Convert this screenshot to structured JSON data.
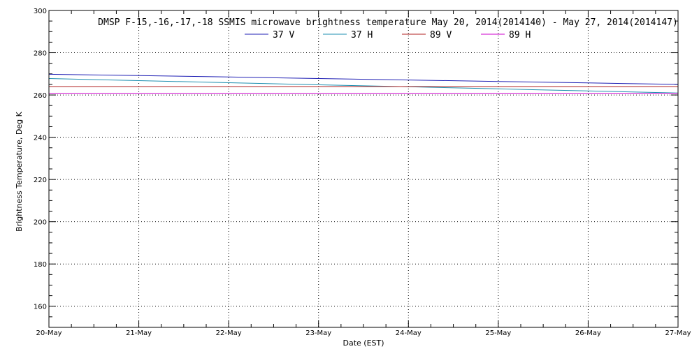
{
  "chart_data": {
    "type": "line",
    "title": "DMSP F-15,-16,-17,-18 SSMIS microwave brightness temperature May 20, 2014(2014140) - May 27, 2014(2014147)",
    "xlabel": "Date (EST)",
    "ylabel": "Brightness Temperature, Deg K",
    "x_tick_labels": [
      "20-May",
      "21-May",
      "22-May",
      "23-May",
      "24-May",
      "25-May",
      "26-May",
      "27-May"
    ],
    "y_tick_labels": [
      "160",
      "180",
      "200",
      "220",
      "240",
      "260",
      "280",
      "300"
    ],
    "y_ticks": [
      160,
      180,
      200,
      220,
      240,
      260,
      280,
      300
    ],
    "xlim": [
      "2014-05-20",
      "2014-05-27"
    ],
    "ylim": [
      150,
      300
    ],
    "grid": true,
    "legend_position": "top-center",
    "series": [
      {
        "name": "37 V",
        "color": "#1f1fb4",
        "x": [
          "2014-05-20",
          "2014-05-21",
          "2014-05-22",
          "2014-05-23",
          "2014-05-24",
          "2014-05-25",
          "2014-05-26",
          "2014-05-27"
        ],
        "values": [
          269.8,
          269.2,
          268.5,
          267.8,
          267.1,
          266.4,
          265.7,
          265.0
        ]
      },
      {
        "name": "37 H",
        "color": "#1e8fb0",
        "x": [
          "2014-05-20",
          "2014-05-21",
          "2014-05-22",
          "2014-05-23",
          "2014-05-24",
          "2014-05-25",
          "2014-05-26",
          "2014-05-27"
        ],
        "values": [
          267.8,
          266.8,
          265.8,
          264.8,
          263.9,
          262.9,
          261.9,
          260.9
        ]
      },
      {
        "name": "89 V",
        "color": "#b22222",
        "x": [
          "2014-05-20",
          "2014-05-21",
          "2014-05-22",
          "2014-05-23",
          "2014-05-24",
          "2014-05-25",
          "2014-05-26",
          "2014-05-27"
        ],
        "values": [
          264.0,
          264.0,
          264.0,
          264.0,
          264.0,
          264.0,
          264.0,
          264.0
        ]
      },
      {
        "name": "89 H",
        "color": "#cc00cc",
        "x": [
          "2014-05-20",
          "2014-05-21",
          "2014-05-22",
          "2014-05-23",
          "2014-05-24",
          "2014-05-25",
          "2014-05-26",
          "2014-05-27"
        ],
        "values": [
          260.8,
          260.8,
          260.8,
          260.8,
          260.8,
          260.8,
          260.8,
          260.8
        ]
      }
    ]
  }
}
